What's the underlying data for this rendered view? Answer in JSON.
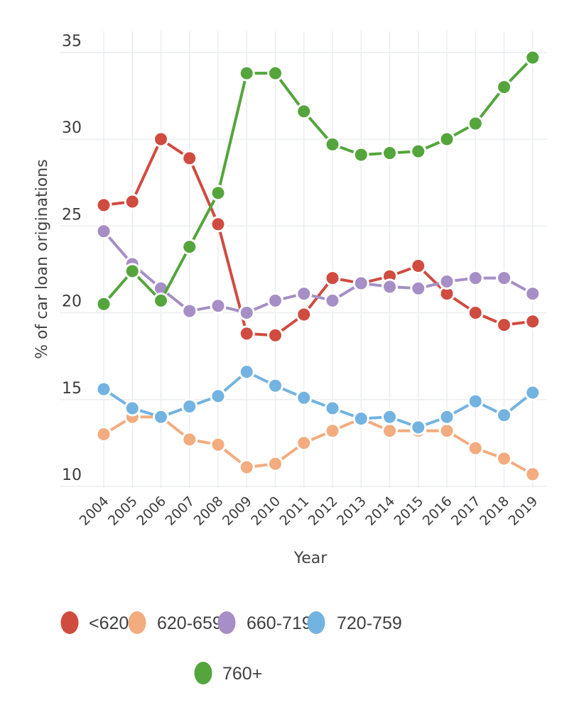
{
  "chart_data": {
    "type": "line",
    "title": "",
    "xlabel": "Year",
    "ylabel": "% of car loan originations",
    "x": [
      "2004",
      "2005",
      "2006",
      "2007",
      "2008",
      "2009",
      "2010",
      "2011",
      "2012",
      "2013",
      "2014",
      "2015",
      "2016",
      "2017",
      "2018",
      "2019"
    ],
    "ylim": [
      10,
      35
    ],
    "yticks": [
      "10",
      "15",
      "20",
      "25",
      "30",
      "35"
    ],
    "grid": true,
    "legend_position": "bottom",
    "series": [
      {
        "name": "<620",
        "color": "#d04b40",
        "values": [
          26.2,
          26.4,
          30.0,
          28.9,
          25.1,
          18.8,
          18.7,
          19.9,
          22.0,
          21.7,
          22.1,
          22.7,
          21.1,
          20.0,
          19.3,
          19.5
        ]
      },
      {
        "name": "620-659",
        "color": "#f2ac7f",
        "values": [
          13.0,
          14.0,
          14.0,
          12.7,
          12.4,
          11.1,
          11.3,
          12.5,
          13.2,
          13.9,
          13.2,
          13.2,
          13.2,
          12.2,
          11.6,
          10.7
        ]
      },
      {
        "name": "660-719",
        "color": "#a58fc6",
        "values": [
          24.7,
          22.8,
          21.4,
          20.1,
          20.4,
          20.0,
          20.7,
          21.1,
          20.7,
          21.7,
          21.5,
          21.4,
          21.8,
          22.0,
          22.0,
          21.1
        ]
      },
      {
        "name": "720-759",
        "color": "#72b3e1",
        "values": [
          15.6,
          14.5,
          14.0,
          14.6,
          15.2,
          16.6,
          15.8,
          15.1,
          14.5,
          13.9,
          14.0,
          13.4,
          14.0,
          14.9,
          14.1,
          15.4
        ]
      },
      {
        "name": "760+",
        "color": "#54a53c",
        "values": [
          20.5,
          22.4,
          20.7,
          23.8,
          26.9,
          33.8,
          33.8,
          31.6,
          29.7,
          29.1,
          29.2,
          29.3,
          30.0,
          30.9,
          33.0,
          34.7
        ]
      }
    ]
  }
}
